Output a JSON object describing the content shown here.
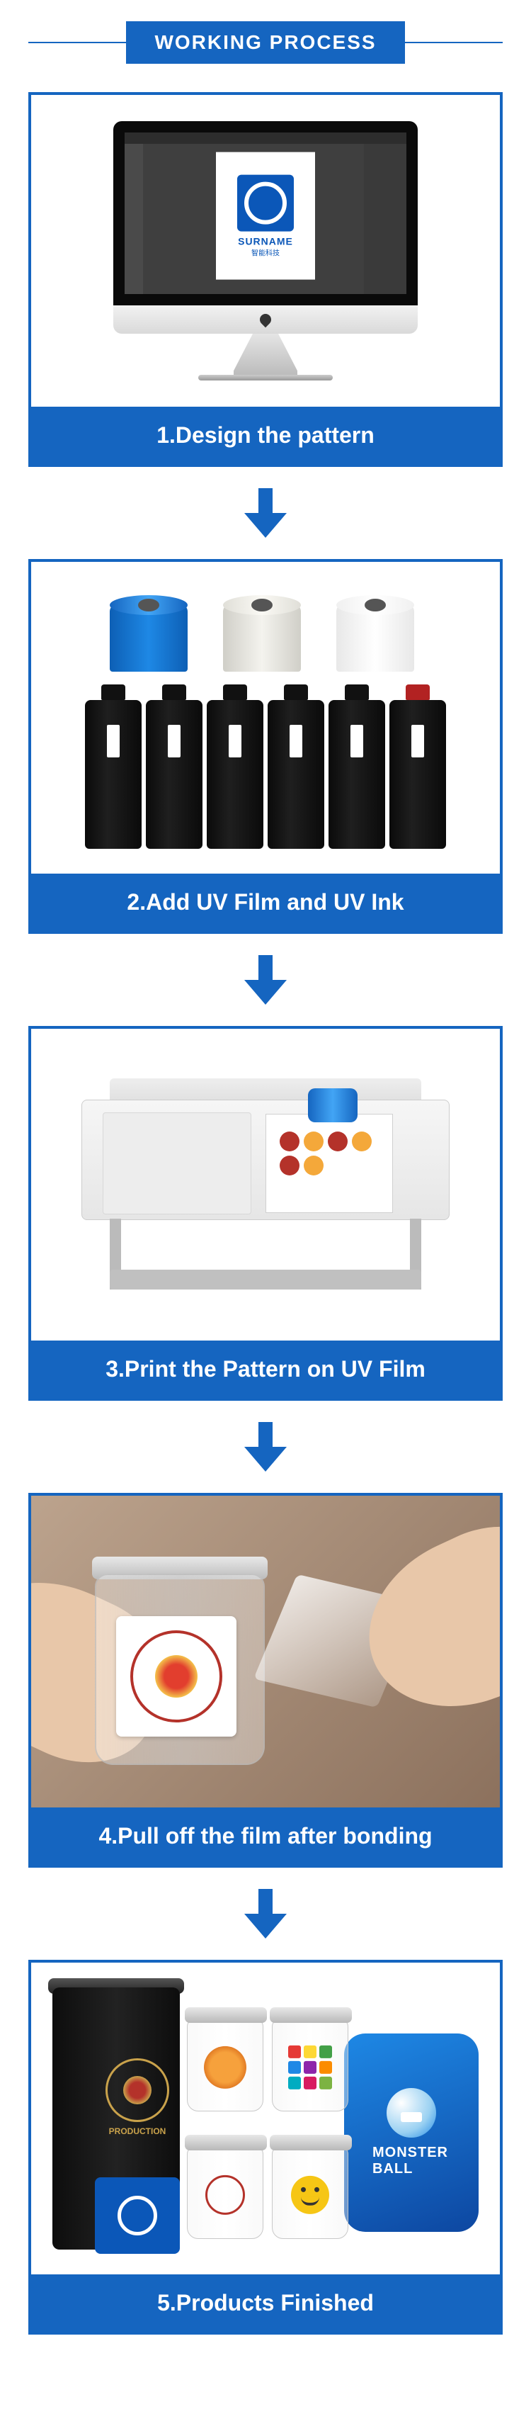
{
  "colors": {
    "primary": "#1565c0",
    "white": "#ffffff",
    "black": "#0a0a0a"
  },
  "header": {
    "title": "WORKING PROCESS"
  },
  "steps": [
    {
      "label": "1.Design the pattern"
    },
    {
      "label": "2.Add UV Film and UV Ink"
    },
    {
      "label": "3.Print the Pattern on UV Film"
    },
    {
      "label": "4.Pull off the film after bonding"
    },
    {
      "label": "5.Products Finished"
    }
  ],
  "step1": {
    "logo_text": "SURNAME",
    "logo_sub": "智能科技"
  },
  "step2": {
    "roll_colors": [
      "blue",
      "clear",
      "white"
    ],
    "bottle_count": 6
  },
  "step3": {
    "blob_colors": [
      "#b4322a",
      "#f4a83a",
      "#b4322a",
      "#f4a83a",
      "#b4322a",
      "#f4a83a"
    ]
  },
  "step5": {
    "tin_brand": "PRODUCTION",
    "case_text": "MONSTER BALL",
    "grid_colors": [
      "#e53935",
      "#fdd835",
      "#43a047",
      "#1e88e5",
      "#8e24aa",
      "#fb8c00",
      "#00acc1",
      "#d81b60",
      "#7cb342"
    ]
  }
}
